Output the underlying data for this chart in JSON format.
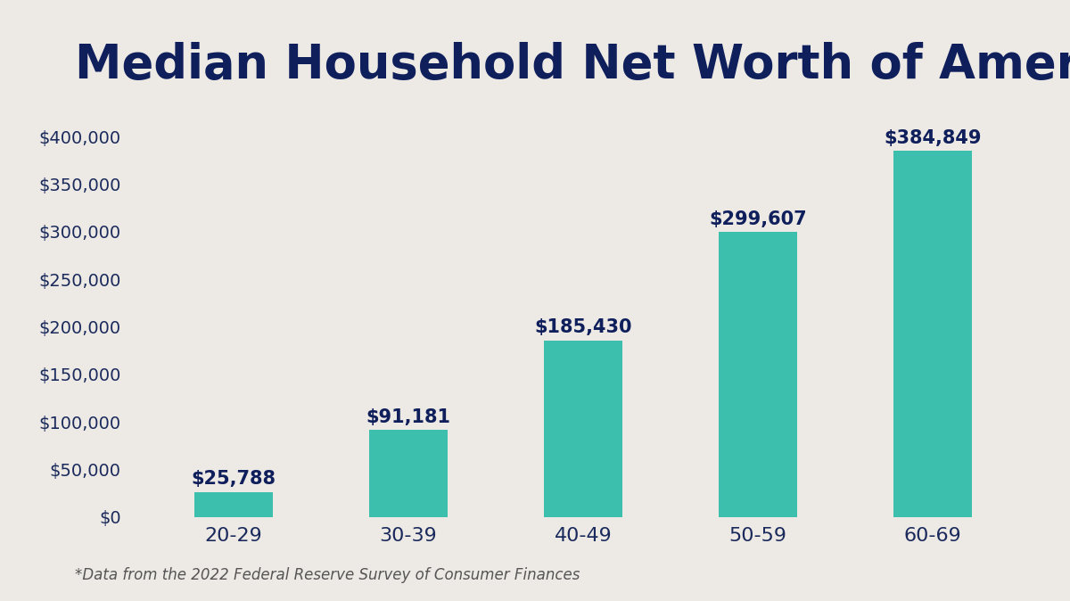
{
  "title": "Median Household Net Worth of Americans",
  "categories": [
    "20-29",
    "30-39",
    "40-49",
    "50-59",
    "60-69"
  ],
  "values": [
    25788,
    91181,
    185430,
    299607,
    384849
  ],
  "labels": [
    "$25,788",
    "$91,181",
    "$185,430",
    "$299,607",
    "$384,849"
  ],
  "bar_color": "#3dbfad",
  "background_color": "#ede9e4",
  "title_color": "#0f1f5c",
  "tick_label_color": "#1a2a5c",
  "value_label_color": "#0f1f5c",
  "footnote": "*Data from the 2022 Federal Reserve Survey of Consumer Finances",
  "footnote_color": "#555555",
  "ylim": [
    0,
    430000
  ],
  "yticks": [
    0,
    50000,
    100000,
    150000,
    200000,
    250000,
    300000,
    350000,
    400000
  ],
  "title_fontsize": 38,
  "tick_fontsize": 14,
  "value_label_fontsize": 15,
  "footnote_fontsize": 12,
  "bar_width": 0.45
}
